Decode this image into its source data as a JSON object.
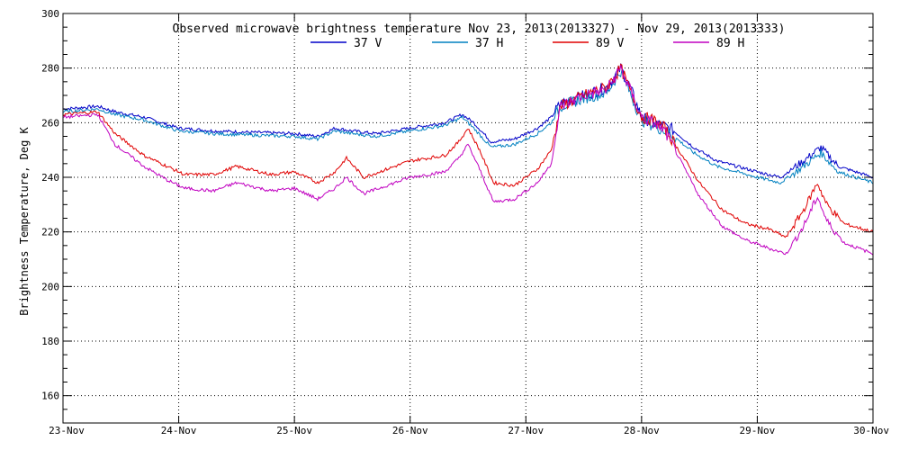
{
  "chart_data": {
    "type": "line",
    "title": "Observed microwave brightness temperature Nov 23, 2013(2013327) - Nov 29, 2013(2013333)",
    "xlabel": "",
    "ylabel": "Brightness Temperature, Deg K",
    "xlim": [
      0,
      7
    ],
    "ylim": [
      150,
      300
    ],
    "grid": true,
    "legend_position": "top-center",
    "x_ticks": [
      {
        "value": 0,
        "label": "23-Nov"
      },
      {
        "value": 1,
        "label": "24-Nov"
      },
      {
        "value": 2,
        "label": "25-Nov"
      },
      {
        "value": 3,
        "label": "26-Nov"
      },
      {
        "value": 4,
        "label": "27-Nov"
      },
      {
        "value": 5,
        "label": "28-Nov"
      },
      {
        "value": 6,
        "label": "29-Nov"
      },
      {
        "value": 7,
        "label": "30-Nov"
      }
    ],
    "y_ticks": [
      160,
      180,
      200,
      220,
      240,
      260,
      280,
      300
    ],
    "series": [
      {
        "name": "37 V",
        "color": "#0000c8",
        "points": [
          [
            0,
            265
          ],
          [
            0.3,
            266
          ],
          [
            0.45,
            264
          ],
          [
            0.7,
            262
          ],
          [
            1.0,
            258
          ],
          [
            1.3,
            257
          ],
          [
            1.6,
            256.5
          ],
          [
            2.0,
            256
          ],
          [
            2.2,
            255
          ],
          [
            2.35,
            258
          ],
          [
            2.5,
            257
          ],
          [
            2.7,
            256
          ],
          [
            3.0,
            258
          ],
          [
            3.3,
            260
          ],
          [
            3.45,
            263
          ],
          [
            3.55,
            260
          ],
          [
            3.7,
            253
          ],
          [
            3.9,
            254
          ],
          [
            4.1,
            258
          ],
          [
            4.22,
            262
          ],
          [
            4.3,
            267
          ],
          [
            4.5,
            270
          ],
          [
            4.7,
            273
          ],
          [
            4.82,
            280
          ],
          [
            4.9,
            273
          ],
          [
            5.0,
            262
          ],
          [
            5.1,
            260
          ],
          [
            5.25,
            258
          ],
          [
            5.45,
            251
          ],
          [
            5.65,
            246
          ],
          [
            6.0,
            242
          ],
          [
            6.2,
            240
          ],
          [
            6.4,
            246
          ],
          [
            6.55,
            251
          ],
          [
            6.7,
            244
          ],
          [
            7.0,
            240
          ]
        ]
      },
      {
        "name": "37 H",
        "color": "#0080c0",
        "points": [
          [
            0,
            264
          ],
          [
            0.3,
            265
          ],
          [
            0.45,
            263
          ],
          [
            0.7,
            261
          ],
          [
            1.0,
            257
          ],
          [
            1.3,
            256
          ],
          [
            1.6,
            255.5
          ],
          [
            2.0,
            255
          ],
          [
            2.2,
            254
          ],
          [
            2.35,
            257
          ],
          [
            2.5,
            256
          ],
          [
            2.7,
            255
          ],
          [
            3.0,
            257
          ],
          [
            3.3,
            259
          ],
          [
            3.45,
            262
          ],
          [
            3.55,
            258
          ],
          [
            3.7,
            251
          ],
          [
            3.9,
            252
          ],
          [
            4.1,
            256
          ],
          [
            4.22,
            260
          ],
          [
            4.3,
            266
          ],
          [
            4.5,
            269
          ],
          [
            4.7,
            271
          ],
          [
            4.82,
            279
          ],
          [
            4.9,
            271
          ],
          [
            5.0,
            261
          ],
          [
            5.1,
            259
          ],
          [
            5.25,
            256
          ],
          [
            5.45,
            249
          ],
          [
            5.65,
            244
          ],
          [
            6.0,
            240
          ],
          [
            6.2,
            238
          ],
          [
            6.4,
            244
          ],
          [
            6.55,
            249
          ],
          [
            6.7,
            242
          ],
          [
            7.0,
            238
          ]
        ]
      },
      {
        "name": "89 V",
        "color": "#e00000",
        "points": [
          [
            0,
            263
          ],
          [
            0.3,
            264
          ],
          [
            0.45,
            256
          ],
          [
            0.7,
            248
          ],
          [
            0.9,
            244
          ],
          [
            1.05,
            241
          ],
          [
            1.3,
            241
          ],
          [
            1.5,
            244
          ],
          [
            1.8,
            241
          ],
          [
            2.0,
            242
          ],
          [
            2.2,
            238
          ],
          [
            2.35,
            242
          ],
          [
            2.45,
            247
          ],
          [
            2.6,
            240
          ],
          [
            2.8,
            243
          ],
          [
            3.0,
            246
          ],
          [
            3.3,
            248
          ],
          [
            3.42,
            253
          ],
          [
            3.5,
            258
          ],
          [
            3.6,
            250
          ],
          [
            3.72,
            238
          ],
          [
            3.9,
            237
          ],
          [
            4.1,
            243
          ],
          [
            4.22,
            250
          ],
          [
            4.3,
            266
          ],
          [
            4.5,
            270
          ],
          [
            4.7,
            273
          ],
          [
            4.82,
            280
          ],
          [
            4.9,
            272
          ],
          [
            5.0,
            262
          ],
          [
            5.1,
            261
          ],
          [
            5.2,
            258
          ],
          [
            5.35,
            248
          ],
          [
            5.5,
            238
          ],
          [
            5.7,
            228
          ],
          [
            5.9,
            223
          ],
          [
            6.1,
            221
          ],
          [
            6.25,
            218
          ],
          [
            6.4,
            228
          ],
          [
            6.52,
            238
          ],
          [
            6.6,
            230
          ],
          [
            6.75,
            223
          ],
          [
            7.0,
            220
          ]
        ]
      },
      {
        "name": "89 H",
        "color": "#c000c0",
        "points": [
          [
            0,
            262
          ],
          [
            0.3,
            263
          ],
          [
            0.45,
            252
          ],
          [
            0.7,
            244
          ],
          [
            0.9,
            239
          ],
          [
            1.05,
            236
          ],
          [
            1.3,
            235
          ],
          [
            1.5,
            238
          ],
          [
            1.8,
            235
          ],
          [
            2.0,
            236
          ],
          [
            2.2,
            232
          ],
          [
            2.35,
            236
          ],
          [
            2.45,
            240
          ],
          [
            2.6,
            234
          ],
          [
            2.8,
            237
          ],
          [
            3.0,
            240
          ],
          [
            3.3,
            242
          ],
          [
            3.42,
            247
          ],
          [
            3.5,
            252
          ],
          [
            3.6,
            243
          ],
          [
            3.72,
            231
          ],
          [
            3.9,
            232
          ],
          [
            4.1,
            238
          ],
          [
            4.22,
            245
          ],
          [
            4.3,
            266
          ],
          [
            4.5,
            270
          ],
          [
            4.7,
            272
          ],
          [
            4.82,
            280
          ],
          [
            4.9,
            272
          ],
          [
            5.0,
            262
          ],
          [
            5.1,
            260
          ],
          [
            5.2,
            257
          ],
          [
            5.35,
            245
          ],
          [
            5.5,
            233
          ],
          [
            5.7,
            222
          ],
          [
            5.9,
            217
          ],
          [
            6.1,
            214
          ],
          [
            6.25,
            212
          ],
          [
            6.4,
            222
          ],
          [
            6.52,
            233
          ],
          [
            6.6,
            224
          ],
          [
            6.75,
            216
          ],
          [
            7.0,
            212
          ]
        ]
      }
    ]
  }
}
